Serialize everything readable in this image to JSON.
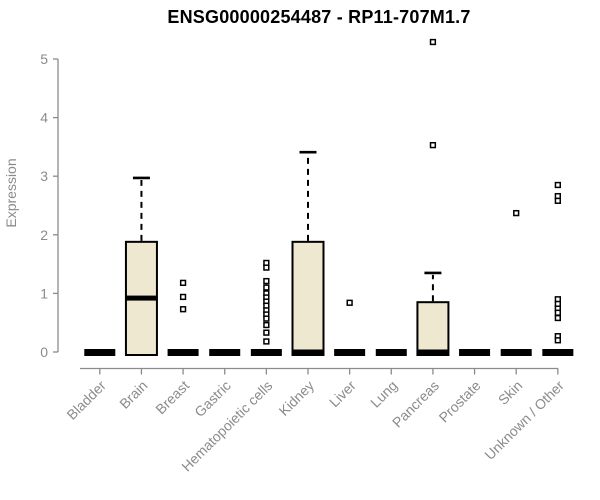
{
  "chart_data": {
    "type": "boxplot",
    "title": "ENSG00000254487 - RP11-707M1.7",
    "ylabel": "Expression",
    "xlabel": "",
    "ylim": [
      0,
      5
    ],
    "yticks": [
      0,
      1,
      2,
      3,
      4,
      5
    ],
    "grid": false,
    "legend": "none",
    "colors": {
      "box_fill": "#EDE8CF",
      "box_stroke": "#000000",
      "median": "#000000",
      "whisker": "#000000",
      "outlier_stroke": "#000000",
      "outlier_fill": "#FFFFFF",
      "axis": "#8B8B8B",
      "tick_label": "#8B8B8B",
      "title": "#000000",
      "background": "#FFFFFF"
    },
    "categories": [
      "Bladder",
      "Brain",
      "Breast",
      "Gastric",
      "Hematopoietic cells",
      "Kidney",
      "Liver",
      "Lung",
      "Pancreas",
      "Prostate",
      "Skin",
      "Unknown / Other"
    ],
    "boxes": [
      {
        "category": "Bladder",
        "q1": 0,
        "median": 0,
        "q3": 0,
        "whisker_low": 0,
        "whisker_high": 0,
        "outliers": []
      },
      {
        "category": "Brain",
        "q1": 0,
        "median": 0.92,
        "q3": 1.88,
        "whisker_low": 0,
        "whisker_high": 2.97,
        "outliers": []
      },
      {
        "category": "Breast",
        "q1": 0,
        "median": 0,
        "q3": 0,
        "whisker_low": 0,
        "whisker_high": 0,
        "outliers": [
          1.18,
          0.94,
          0.73
        ]
      },
      {
        "category": "Gastric",
        "q1": 0,
        "median": 0,
        "q3": 0,
        "whisker_low": 0,
        "whisker_high": 0,
        "outliers": []
      },
      {
        "category": "Hematopoietic cells",
        "q1": 0,
        "median": 0,
        "q3": 0,
        "whisker_low": 0,
        "whisker_high": 0,
        "outliers": [
          1.52,
          1.44,
          1.21,
          1.1,
          1.0,
          0.93,
          0.86,
          0.79,
          0.71,
          0.64,
          0.57,
          0.46,
          0.33,
          0.18
        ]
      },
      {
        "category": "Kidney",
        "q1": 0,
        "median": 0,
        "q3": 1.88,
        "whisker_low": 0,
        "whisker_high": 3.41,
        "outliers": []
      },
      {
        "category": "Liver",
        "q1": 0,
        "median": 0,
        "q3": 0,
        "whisker_low": 0,
        "whisker_high": 0,
        "outliers": [
          0.84
        ]
      },
      {
        "category": "Lung",
        "q1": 0,
        "median": 0,
        "q3": 0,
        "whisker_low": 0,
        "whisker_high": 0,
        "outliers": []
      },
      {
        "category": "Pancreas",
        "q1": 0,
        "median": 0,
        "q3": 0.85,
        "whisker_low": 0,
        "whisker_high": 1.35,
        "outliers": [
          3.53,
          5.29
        ]
      },
      {
        "category": "Prostate",
        "q1": 0,
        "median": 0,
        "q3": 0,
        "whisker_low": 0,
        "whisker_high": 0,
        "outliers": []
      },
      {
        "category": "Skin",
        "q1": 0,
        "median": 0,
        "q3": 0,
        "whisker_low": 0,
        "whisker_high": 0,
        "outliers": [
          2.37
        ]
      },
      {
        "category": "Unknown / Other",
        "q1": 0,
        "median": 0,
        "q3": 0,
        "whisker_low": 0,
        "whisker_high": 0,
        "outliers": [
          2.85,
          2.66,
          2.58,
          0.9,
          0.82,
          0.74,
          0.67,
          0.58,
          0.27,
          0.2
        ]
      }
    ]
  }
}
